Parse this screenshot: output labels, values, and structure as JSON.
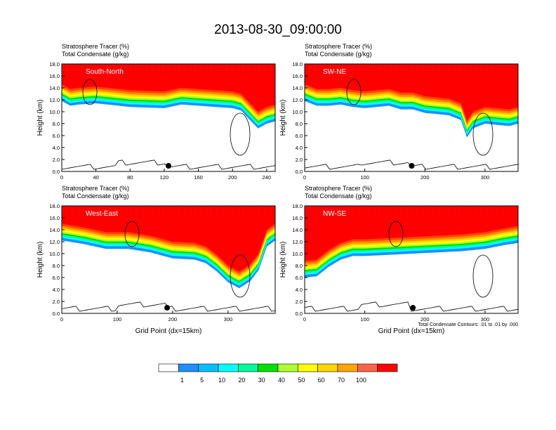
{
  "figure": {
    "title": "2013-08-30_09:00:00",
    "footnote": "Total Condensate Contours: .01 to .01 by .000"
  },
  "colorbar": {
    "labels": [
      "1",
      "5",
      "10",
      "20",
      "30",
      "40",
      "50",
      "60",
      "70",
      "100"
    ],
    "colors": [
      "#ffffff",
      "#1e90ff",
      "#00bfff",
      "#00ffff",
      "#00fa9a",
      "#00e000",
      "#adff2f",
      "#ffff00",
      "#ffd700",
      "#ffa500",
      "#ff6347",
      "#ff0000"
    ]
  },
  "chart_data": [
    {
      "type": "heatmap",
      "name": "South-North",
      "title_line1": "Stratosphere Tracer   (%)",
      "title_line2": "Total Condensate   (g/kg)",
      "ylabel": "Height (km)",
      "xlabel": "",
      "xlim": [
        0,
        250
      ],
      "ylim": [
        0,
        18
      ],
      "xticks": [
        0,
        40,
        80,
        120,
        160,
        200,
        240
      ],
      "yticks": [
        "0.0",
        "2.0",
        "4.0",
        "6.0",
        "8.0",
        "10.0",
        "12.0",
        "14.0",
        "16.0",
        "18.0"
      ],
      "marker_x": 125,
      "tropopause_km": [
        [
          0,
          14.6
        ],
        [
          10,
          13.8
        ],
        [
          20,
          14.0
        ],
        [
          40,
          14.2
        ],
        [
          60,
          13.9
        ],
        [
          80,
          13.6
        ],
        [
          100,
          13.5
        ],
        [
          120,
          13.4
        ],
        [
          140,
          14.0
        ],
        [
          160,
          13.8
        ],
        [
          180,
          13.6
        ],
        [
          200,
          13.4
        ],
        [
          210,
          13.0
        ],
        [
          220,
          11.5
        ],
        [
          230,
          10.0
        ],
        [
          240,
          10.8
        ],
        [
          250,
          11.2
        ]
      ]
    },
    {
      "type": "heatmap",
      "name": "SW-NE",
      "title_line1": "Stratosphere Tracer   (%)",
      "title_line2": "Total Condensate   (g/kg)",
      "ylabel": "Height (km)",
      "xlabel": "",
      "xlim": [
        0,
        355
      ],
      "ylim": [
        0,
        18
      ],
      "xticks": [
        0,
        100,
        200,
        300
      ],
      "yticks": [
        "0.0",
        "2.0",
        "4.0",
        "6.0",
        "8.0",
        "10.0",
        "12.0",
        "14.0",
        "16.0",
        "18.0"
      ],
      "marker_x": 178,
      "tropopause_km": [
        [
          0,
          14.6
        ],
        [
          20,
          13.8
        ],
        [
          40,
          13.8
        ],
        [
          60,
          14.0
        ],
        [
          80,
          13.6
        ],
        [
          100,
          13.4
        ],
        [
          120,
          13.6
        ],
        [
          140,
          13.8
        ],
        [
          160,
          13.2
        ],
        [
          180,
          13.2
        ],
        [
          200,
          12.6
        ],
        [
          220,
          12.4
        ],
        [
          240,
          12.2
        ],
        [
          260,
          11.4
        ],
        [
          270,
          8.5
        ],
        [
          280,
          10.0
        ],
        [
          300,
          10.8
        ],
        [
          320,
          10.6
        ],
        [
          340,
          10.4
        ],
        [
          355,
          10.8
        ]
      ]
    },
    {
      "type": "heatmap",
      "name": "West-East",
      "title_line1": "Stratosphere Tracer   (%)",
      "title_line2": "Total Condensate   (g/kg)",
      "ylabel": "Height (km)",
      "xlabel": "Grid Point (dx=15km)",
      "xlim": [
        0,
        385
      ],
      "ylim": [
        0,
        18
      ],
      "xticks": [
        0,
        100,
        200,
        300
      ],
      "yticks": [
        "0.0",
        "2.0",
        "4.0",
        "6.0",
        "8.0",
        "10.0",
        "12.0",
        "14.0",
        "16.0",
        "18.0"
      ],
      "marker_x": 190,
      "tropopause_km": [
        [
          0,
          15.0
        ],
        [
          40,
          14.4
        ],
        [
          80,
          13.6
        ],
        [
          120,
          13.6
        ],
        [
          160,
          13.0
        ],
        [
          200,
          12.0
        ],
        [
          240,
          11.8
        ],
        [
          260,
          11.2
        ],
        [
          280,
          9.8
        ],
        [
          300,
          8.0
        ],
        [
          320,
          7.0
        ],
        [
          340,
          8.2
        ],
        [
          355,
          10.0
        ],
        [
          370,
          14.0
        ],
        [
          385,
          15.0
        ]
      ]
    },
    {
      "type": "heatmap",
      "name": "NW-SE",
      "title_line1": "Stratosphere Tracer   (%)",
      "title_line2": "Total Condensate   (g/kg)",
      "ylabel": "Height (km)",
      "xlabel": "Grid Point (dx=15km)",
      "xlim": [
        0,
        355
      ],
      "ylim": [
        0,
        18
      ],
      "xticks": [
        0,
        100,
        200,
        300
      ],
      "yticks": [
        "0.0",
        "2.0",
        "4.0",
        "6.0",
        "8.0",
        "10.0",
        "12.0",
        "14.0",
        "16.0",
        "18.0"
      ],
      "marker_x": 180,
      "tropopause_km": [
        [
          0,
          8.8
        ],
        [
          20,
          9.0
        ],
        [
          40,
          10.6
        ],
        [
          60,
          11.8
        ],
        [
          80,
          12.4
        ],
        [
          100,
          12.4
        ],
        [
          140,
          12.6
        ],
        [
          180,
          12.8
        ],
        [
          220,
          13.0
        ],
        [
          260,
          13.2
        ],
        [
          300,
          13.6
        ],
        [
          330,
          14.2
        ],
        [
          355,
          14.6
        ]
      ]
    }
  ]
}
